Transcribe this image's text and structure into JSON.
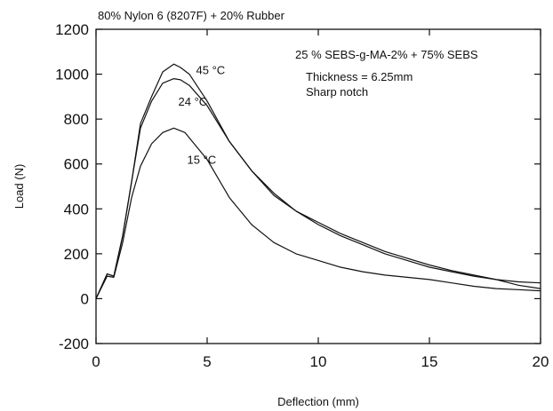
{
  "chart_data": {
    "type": "line",
    "title": "80% Nylon 6 (8207F) + 20% Rubber",
    "xlabel": "Deflection (mm)",
    "ylabel": "Load (N)",
    "xlim": [
      0,
      20
    ],
    "ylim": [
      -200,
      1200
    ],
    "xticks": [
      0,
      5,
      10,
      15,
      20
    ],
    "yticks": [
      -200,
      0,
      200,
      400,
      600,
      800,
      1000,
      1200
    ],
    "grid": false,
    "annotations": [
      "25 % SEBS-g-MA-2% + 75% SEBS",
      "Thickness = 6.25mm",
      "Sharp notch"
    ],
    "series": [
      {
        "name": "45 °C",
        "x": [
          0,
          0.5,
          0.8,
          1.2,
          1.6,
          2.0,
          2.5,
          3.0,
          3.5,
          3.8,
          4.2,
          5,
          6,
          7,
          8,
          9,
          10,
          11,
          12,
          13,
          14,
          15,
          16,
          17,
          18,
          19,
          20
        ],
        "y": [
          0,
          110,
          100,
          280,
          520,
          780,
          900,
          1010,
          1045,
          1030,
          1000,
          880,
          700,
          570,
          470,
          390,
          330,
          280,
          240,
          200,
          170,
          140,
          120,
          100,
          85,
          60,
          45
        ]
      },
      {
        "name": "24 °C",
        "x": [
          0,
          0.5,
          0.8,
          1.2,
          1.6,
          2.0,
          2.5,
          3.0,
          3.5,
          3.8,
          4.2,
          5,
          6,
          7,
          8,
          9,
          10,
          11,
          12,
          13,
          14,
          15,
          16,
          17,
          18,
          19,
          20
        ],
        "y": [
          0,
          110,
          100,
          280,
          520,
          760,
          880,
          960,
          980,
          975,
          950,
          860,
          700,
          570,
          460,
          390,
          340,
          290,
          250,
          210,
          180,
          150,
          125,
          105,
          85,
          75,
          70
        ]
      },
      {
        "name": "15 °C",
        "x": [
          0,
          0.5,
          0.8,
          1.2,
          1.6,
          2.0,
          2.5,
          3.0,
          3.5,
          4.0,
          5,
          6,
          7,
          8,
          9,
          10,
          11,
          12,
          13,
          14,
          15,
          16,
          17,
          18,
          19,
          20
        ],
        "y": [
          0,
          100,
          95,
          250,
          450,
          590,
          690,
          740,
          760,
          740,
          620,
          450,
          330,
          250,
          200,
          170,
          140,
          120,
          105,
          95,
          85,
          70,
          55,
          45,
          40,
          35
        ]
      }
    ],
    "series_label_positions": [
      {
        "name": "45 °C",
        "x": 4.5,
        "y": 1000
      },
      {
        "name": "24 °C",
        "x": 3.7,
        "y": 860
      },
      {
        "name": "15 °C",
        "x": 4.1,
        "y": 600
      }
    ]
  }
}
